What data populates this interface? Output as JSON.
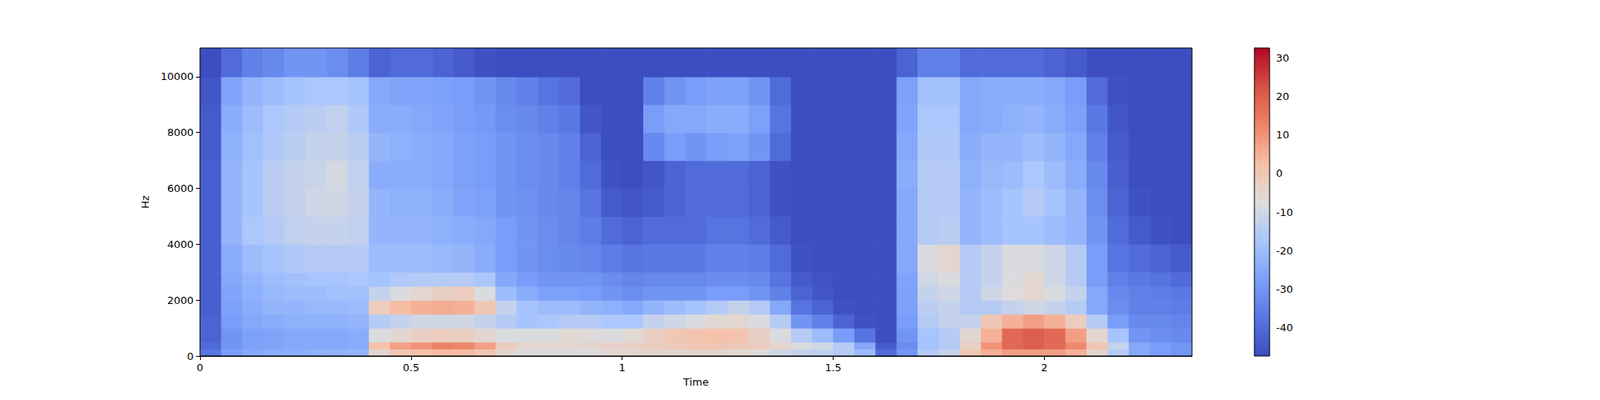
{
  "chart_data": {
    "type": "heatmap",
    "xlabel": "Time",
    "ylabel": "Hz",
    "xlim": [
      0,
      2.35
    ],
    "xticks": [
      0,
      0.5,
      1,
      1.5,
      2
    ],
    "ylim": [
      0,
      11025
    ],
    "yticks": [
      0,
      2000,
      4000,
      6000,
      8000,
      10000
    ],
    "x_edges": [
      0,
      0.05,
      0.1,
      0.15,
      0.2,
      0.25,
      0.3,
      0.35,
      0.4,
      0.45,
      0.5,
      0.55,
      0.6,
      0.65,
      0.7,
      0.75,
      0.8,
      0.85,
      0.9,
      0.95,
      1,
      1.05,
      1.1,
      1.15,
      1.2,
      1.25,
      1.3,
      1.35,
      1.4,
      1.45,
      1.5,
      1.55,
      1.6,
      1.65,
      1.7,
      1.75,
      1.8,
      1.85,
      1.9,
      1.95,
      2,
      2.05,
      2.1,
      2.15,
      2.2,
      2.25,
      2.3,
      2.35
    ],
    "y_edges": [
      0,
      250,
      500,
      1000,
      1500,
      2000,
      2500,
      3000,
      4000,
      5000,
      6000,
      7000,
      8000,
      9000,
      10000,
      11025
    ],
    "cells": [
      [
        -38,
        -40,
        -42,
        -42,
        -43,
        -43,
        -43,
        -43,
        -43,
        -43,
        -43,
        -44,
        -44,
        -45,
        -47
      ],
      [
        -28,
        -30,
        -30,
        -28,
        -27,
        -26,
        -25,
        -24,
        -22,
        -22,
        -22,
        -23,
        -24,
        -26,
        -40
      ],
      [
        -25,
        -27,
        -27,
        -25,
        -24,
        -23,
        -22,
        -20,
        -17,
        -18,
        -18,
        -19,
        -20,
        -22,
        -35
      ],
      [
        -24,
        -26,
        -26,
        -24,
        -22,
        -21,
        -20,
        -18,
        -15,
        -14,
        -14,
        -16,
        -17,
        -20,
        -33
      ],
      [
        -24,
        -25,
        -25,
        -23,
        -22,
        -20,
        -19,
        -16,
        -13,
        -12,
        -12,
        -14,
        -15,
        -18,
        -30
      ],
      [
        -23,
        -25,
        -25,
        -23,
        -21,
        -20,
        -18,
        -15,
        -12,
        -10,
        -11,
        -12,
        -14,
        -17,
        -30
      ],
      [
        -23,
        -25,
        -25,
        -23,
        -21,
        -19,
        -18,
        -15,
        -12,
        -10,
        -9,
        -12,
        -13,
        -17,
        -32
      ],
      [
        -22,
        -24,
        -24,
        -22,
        -20,
        -19,
        -17,
        -15,
        -13,
        -12,
        -13,
        -14,
        -16,
        -18,
        -36
      ],
      [
        -5,
        2,
        -8,
        -15,
        -2,
        -12,
        -18,
        -20,
        -22,
        -22,
        -24,
        -22,
        -24,
        -25,
        -42
      ],
      [
        0,
        8,
        -5,
        -12,
        3,
        -8,
        -16,
        -20,
        -22,
        -23,
        -24,
        -23,
        -24,
        -26,
        -40
      ],
      [
        2,
        10,
        -3,
        -10,
        5,
        -5,
        -15,
        -20,
        -22,
        -23,
        -24,
        -24,
        -25,
        -26,
        -40
      ],
      [
        3,
        13,
        -2,
        -10,
        6,
        -3,
        -15,
        -21,
        -23,
        -24,
        -25,
        -25,
        -26,
        -27,
        -42
      ],
      [
        3,
        12,
        -3,
        -10,
        5,
        -2,
        -15,
        -22,
        -24,
        -26,
        -27,
        -27,
        -28,
        -28,
        -44
      ],
      [
        0,
        8,
        -5,
        -12,
        0,
        -8,
        -17,
        -24,
        -25,
        -27,
        -28,
        -28,
        -29,
        -30,
        -46
      ],
      [
        -5,
        -2,
        -8,
        -15,
        -12,
        -20,
        -25,
        -28,
        -28,
        -30,
        -30,
        -30,
        -32,
        -33,
        -47
      ],
      [
        -8,
        -5,
        -8,
        -18,
        -18,
        -24,
        -28,
        -30,
        -30,
        -31,
        -32,
        -32,
        -33,
        -35,
        -47
      ],
      [
        -8,
        -5,
        -8,
        -17,
        -20,
        -27,
        -30,
        -32,
        -32,
        -33,
        -33,
        -33,
        -35,
        -38,
        -47
      ],
      [
        -8,
        -5,
        -6,
        -15,
        -20,
        -27,
        -30,
        -33,
        -34,
        -34,
        -35,
        -35,
        -37,
        -40,
        -47
      ],
      [
        -7,
        -5,
        -7,
        -15,
        -22,
        -28,
        -30,
        -34,
        -36,
        -38,
        -40,
        -42,
        -45,
        -47,
        -47
      ],
      [
        -6,
        -4,
        -8,
        -17,
        -23,
        -30,
        -32,
        -36,
        -40,
        -44,
        -46,
        -47,
        -47,
        -47,
        -47
      ],
      [
        -5,
        -3,
        -6,
        -17,
        -25,
        -32,
        -34,
        -38,
        -42,
        -45,
        -47,
        -47,
        -47,
        -47,
        -47
      ],
      [
        -5,
        -2,
        -3,
        -12,
        -22,
        -30,
        -33,
        -37,
        -40,
        -44,
        -45,
        -33,
        -28,
        -35,
        -47
      ],
      [
        -5,
        -1,
        0,
        -10,
        -20,
        -30,
        -33,
        -37,
        -40,
        -42,
        -42,
        -28,
        -25,
        -30,
        -47
      ],
      [
        -5,
        0,
        1,
        -8,
        -18,
        -30,
        -33,
        -37,
        -40,
        -40,
        -40,
        -30,
        -25,
        -28,
        -47
      ],
      [
        -5,
        0,
        2,
        -6,
        -15,
        -28,
        -32,
        -35,
        -38,
        -40,
        -40,
        -28,
        -24,
        -27,
        -47
      ],
      [
        -6,
        -1,
        1,
        -5,
        -12,
        -28,
        -32,
        -35,
        -38,
        -40,
        -40,
        -27,
        -24,
        -27,
        -47
      ],
      [
        -7,
        -2,
        -3,
        -8,
        -15,
        -30,
        -33,
        -36,
        -40,
        -42,
        -42,
        -30,
        -27,
        -30,
        -47
      ],
      [
        -10,
        -5,
        -8,
        -15,
        -25,
        -35,
        -38,
        -40,
        -44,
        -46,
        -46,
        -40,
        -38,
        -40,
        -47
      ],
      [
        -12,
        -8,
        -15,
        -30,
        -38,
        -42,
        -44,
        -46,
        -47,
        -47,
        -47,
        -47,
        -47,
        -47,
        -47
      ],
      [
        -13,
        -10,
        -20,
        -35,
        -42,
        -45,
        -46,
        -47,
        -47,
        -47,
        -47,
        -47,
        -47,
        -47,
        -47
      ],
      [
        -15,
        -15,
        -28,
        -42,
        -46,
        -47,
        -47,
        -47,
        -47,
        -47,
        -47,
        -47,
        -47,
        -47,
        -47
      ],
      [
        -20,
        -25,
        -38,
        -46,
        -47,
        -47,
        -47,
        -47,
        -47,
        -47,
        -47,
        -47,
        -47,
        -47,
        -47
      ],
      [
        -40,
        -44,
        -47,
        -47,
        -47,
        -47,
        -47,
        -47,
        -47,
        -47,
        -47,
        -47,
        -47,
        -47,
        -47
      ],
      [
        -30,
        -32,
        -30,
        -28,
        -27,
        -27,
        -26,
        -25,
        -25,
        -25,
        -24,
        -25,
        -26,
        -27,
        -42
      ],
      [
        -15,
        -18,
        -18,
        -15,
        -14,
        -12,
        -10,
        -8,
        -15,
        -15,
        -15,
        -16,
        -17,
        -19,
        -35
      ],
      [
        -12,
        -15,
        -15,
        -12,
        -12,
        -10,
        -8,
        -5,
        -14,
        -15,
        -15,
        -16,
        -17,
        -19,
        -35
      ],
      [
        0,
        -3,
        -5,
        -12,
        -15,
        -15,
        -15,
        -15,
        -22,
        -22,
        -23,
        -24,
        -25,
        -25,
        -40
      ],
      [
        5,
        10,
        5,
        0,
        -15,
        -10,
        -12,
        -12,
        -20,
        -20,
        -21,
        -22,
        -24,
        -24,
        -40
      ],
      [
        8,
        18,
        18,
        5,
        -12,
        -7,
        -8,
        -8,
        -18,
        -18,
        -20,
        -22,
        -23,
        -24,
        -40
      ],
      [
        8,
        20,
        20,
        8,
        -10,
        -5,
        -5,
        -8,
        -18,
        -15,
        -17,
        -20,
        -22,
        -24,
        -40
      ],
      [
        8,
        18,
        18,
        5,
        -12,
        -8,
        -10,
        -10,
        -20,
        -18,
        -20,
        -22,
        -24,
        -25,
        -42
      ],
      [
        5,
        12,
        8,
        -2,
        -15,
        -12,
        -15,
        -15,
        -22,
        -22,
        -24,
        -25,
        -27,
        -28,
        -44
      ],
      [
        -5,
        0,
        -5,
        -15,
        -25,
        -25,
        -28,
        -28,
        -30,
        -32,
        -33,
        -35,
        -37,
        -40,
        -47
      ],
      [
        -15,
        -12,
        -18,
        -28,
        -32,
        -33,
        -35,
        -38,
        -40,
        -42,
        -43,
        -44,
        -45,
        -46,
        -47
      ],
      [
        -25,
        -25,
        -30,
        -33,
        -35,
        -35,
        -37,
        -40,
        -44,
        -46,
        -47,
        -47,
        -47,
        -47,
        -47
      ],
      [
        -28,
        -28,
        -32,
        -33,
        -35,
        -36,
        -38,
        -42,
        -46,
        -47,
        -47,
        -47,
        -47,
        -47,
        -47
      ],
      [
        -30,
        -30,
        -33,
        -34,
        -36,
        -37,
        -40,
        -44,
        -47,
        -47,
        -47,
        -47,
        -47,
        -47,
        -47
      ]
    ],
    "colorbar": {
      "range": [
        -47.4,
        32.6
      ],
      "ticks": [
        -40,
        -30,
        -20,
        -10,
        0,
        10,
        20,
        30
      ]
    }
  }
}
